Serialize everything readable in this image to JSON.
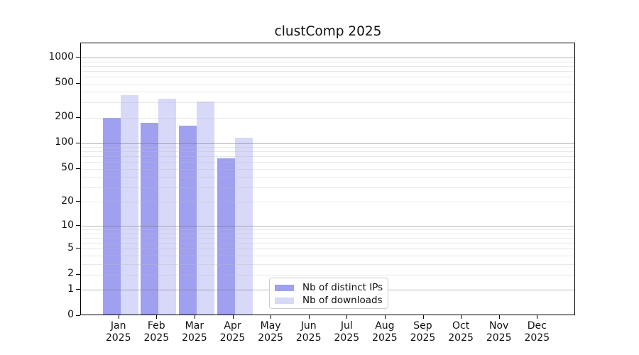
{
  "title": "clustComp 2025",
  "colors": {
    "distinct_ips_bar": "#a0a0f0",
    "downloads_bar": "#d8d8f8",
    "grid_major": "#6e6e6e",
    "grid_minor": "#bebebe",
    "axis_line": "#000000",
    "legend_border": "#cccccc",
    "text": "#111111"
  },
  "legend": {
    "items": [
      {
        "label": "Nb of distinct IPs",
        "series_key": "distinct_ips"
      },
      {
        "label": "Nb of downloads",
        "series_key": "downloads"
      }
    ]
  },
  "y_axis": {
    "ticks": [
      0,
      1,
      2,
      5,
      10,
      20,
      50,
      100,
      200,
      500,
      1000
    ],
    "major_grid_values": [
      1,
      10,
      100,
      1000
    ],
    "scale": "log10(1+x)"
  },
  "x_axis": {
    "months": [
      {
        "month": "Jan",
        "year": "2025"
      },
      {
        "month": "Feb",
        "year": "2025"
      },
      {
        "month": "Mar",
        "year": "2025"
      },
      {
        "month": "Apr",
        "year": "2025"
      },
      {
        "month": "May",
        "year": "2025"
      },
      {
        "month": "Jun",
        "year": "2025"
      },
      {
        "month": "Jul",
        "year": "2025"
      },
      {
        "month": "Aug",
        "year": "2025"
      },
      {
        "month": "Sep",
        "year": "2025"
      },
      {
        "month": "Oct",
        "year": "2025"
      },
      {
        "month": "Nov",
        "year": "2025"
      },
      {
        "month": "Dec",
        "year": "2025"
      }
    ]
  },
  "chart_data": {
    "type": "bar",
    "title": "clustComp 2025",
    "categories": [
      "Jan 2025",
      "Feb 2025",
      "Mar 2025",
      "Apr 2025",
      "May 2025",
      "Jun 2025",
      "Jul 2025",
      "Aug 2025",
      "Sep 2025",
      "Oct 2025",
      "Nov 2025",
      "Dec 2025"
    ],
    "series": [
      {
        "name": "Nb of distinct IPs",
        "values": [
          200,
          175,
          162,
          66,
          null,
          null,
          null,
          null,
          null,
          null,
          null,
          null
        ]
      },
      {
        "name": "Nb of downloads",
        "values": [
          365,
          333,
          307,
          115,
          null,
          null,
          null,
          null,
          null,
          null,
          null,
          null
        ]
      }
    ],
    "xlabel": "",
    "ylabel": "",
    "y_scale": "log10(1+x)",
    "y_ticks": [
      0,
      1,
      2,
      5,
      10,
      20,
      50,
      100,
      200,
      500,
      1000
    ],
    "ylim": [
      0,
      1400
    ],
    "grid": true,
    "grid_which": "both",
    "legend_position": "lower-center"
  }
}
